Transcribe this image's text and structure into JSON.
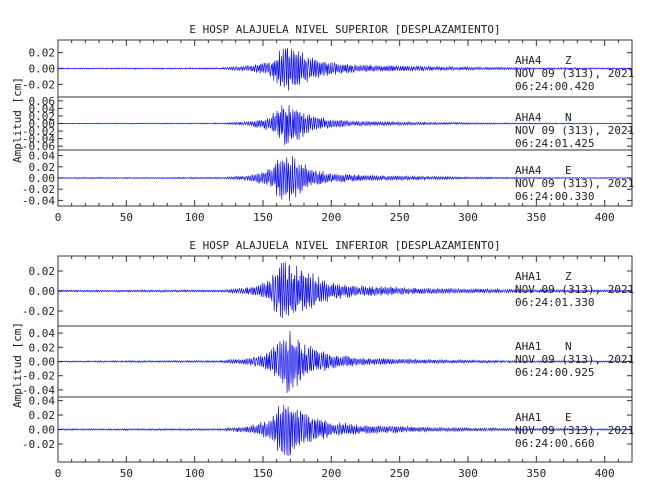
{
  "trace_color": "#1414e6",
  "chart_data": [
    {
      "type": "line",
      "title": "E HOSP ALAJUELA NIVEL SUPERIOR [DESPLAZAMIENTO]",
      "ylabel": "Amplitud [cm]",
      "xlabel": "",
      "xlim": [
        0,
        420
      ],
      "xticks": [
        "0",
        "50",
        "100",
        "150",
        "200",
        "250",
        "300",
        "350",
        "400"
      ],
      "traces": [
        {
          "station": "AHA4",
          "component": "Z",
          "date": "NOV 09 (313), 2021",
          "time": "06:24:00.420",
          "ylim": [
            -0.036,
            0.036
          ],
          "yticks": [
            {
              "v": 0.02,
              "t": "0.02"
            },
            {
              "v": 0.0,
              "t": "0.00"
            },
            {
              "v": -0.02,
              "t": "-0.02"
            }
          ],
          "envelope": [
            [
              0,
              0.0008
            ],
            [
              120,
              0.001
            ],
            [
              125,
              0.002
            ],
            [
              140,
              0.004
            ],
            [
              155,
              0.01
            ],
            [
              160,
              0.022
            ],
            [
              165,
              0.03
            ],
            [
              170,
              0.033
            ],
            [
              175,
              0.028
            ],
            [
              180,
              0.02
            ],
            [
              190,
              0.014
            ],
            [
              200,
              0.009
            ],
            [
              220,
              0.005
            ],
            [
              260,
              0.0035
            ],
            [
              300,
              0.002
            ],
            [
              350,
              0.0012
            ],
            [
              420,
              0.0008
            ]
          ]
        },
        {
          "station": "AHA4",
          "component": "N",
          "date": "NOV 09 (313), 2021",
          "time": "06:24:01.425",
          "ylim": [
            -0.07,
            0.07
          ],
          "yticks": [
            {
              "v": 0.06,
              "t": "0.06"
            },
            {
              "v": 0.04,
              "t": "0.04"
            },
            {
              "v": 0.02,
              "t": "0.02"
            },
            {
              "v": 0.0,
              "t": "0.00"
            },
            {
              "v": -0.02,
              "t": "-0.02"
            },
            {
              "v": -0.04,
              "t": "-0.04"
            },
            {
              "v": -0.06,
              "t": "-0.06"
            }
          ],
          "envelope": [
            [
              0,
              0.001
            ],
            [
              120,
              0.0015
            ],
            [
              140,
              0.006
            ],
            [
              155,
              0.02
            ],
            [
              160,
              0.04
            ],
            [
              165,
              0.06
            ],
            [
              170,
              0.063
            ],
            [
              175,
              0.05
            ],
            [
              180,
              0.035
            ],
            [
              190,
              0.02
            ],
            [
              200,
              0.012
            ],
            [
              220,
              0.007
            ],
            [
              260,
              0.004
            ],
            [
              300,
              0.0025
            ],
            [
              350,
              0.0015
            ],
            [
              420,
              0.001
            ]
          ]
        },
        {
          "station": "AHA4",
          "component": "E",
          "date": "NOV 09 (313), 2021",
          "time": "06:24:00.330",
          "ylim": [
            -0.05,
            0.05
          ],
          "yticks": [
            {
              "v": 0.04,
              "t": "0.04"
            },
            {
              "v": 0.02,
              "t": "0.02"
            },
            {
              "v": 0.0,
              "t": "0.00"
            },
            {
              "v": -0.02,
              "t": "-0.02"
            },
            {
              "v": -0.04,
              "t": "-0.04"
            }
          ],
          "envelope": [
            [
              0,
              0.001
            ],
            [
              120,
              0.0015
            ],
            [
              140,
              0.005
            ],
            [
              155,
              0.018
            ],
            [
              160,
              0.035
            ],
            [
              165,
              0.044
            ],
            [
              170,
              0.046
            ],
            [
              175,
              0.038
            ],
            [
              180,
              0.028
            ],
            [
              190,
              0.016
            ],
            [
              200,
              0.01
            ],
            [
              220,
              0.006
            ],
            [
              260,
              0.0035
            ],
            [
              300,
              0.002
            ],
            [
              350,
              0.0013
            ],
            [
              420,
              0.001
            ]
          ]
        }
      ]
    },
    {
      "type": "line",
      "title": "E HOSP ALAJUELA NIVEL INFERIOR [DESPLAZAMIENTO]",
      "ylabel": "Amplitud [cm]",
      "xlabel": "",
      "xlim": [
        0,
        420
      ],
      "xticks": [
        "0",
        "50",
        "100",
        "150",
        "200",
        "250",
        "300",
        "350",
        "400"
      ],
      "traces": [
        {
          "station": "AHA1",
          "component": "Z",
          "date": "NOV 09 (313), 2021",
          "time": "06:24:01.330",
          "ylim": [
            -0.035,
            0.035
          ],
          "yticks": [
            {
              "v": 0.02,
              "t": "0.02"
            },
            {
              "v": 0.0,
              "t": "0.00"
            },
            {
              "v": -0.02,
              "t": "-0.02"
            }
          ],
          "envelope": [
            [
              0,
              0.001
            ],
            [
              120,
              0.0012
            ],
            [
              140,
              0.004
            ],
            [
              155,
              0.012
            ],
            [
              160,
              0.025
            ],
            [
              165,
              0.032
            ],
            [
              170,
              0.033
            ],
            [
              175,
              0.028
            ],
            [
              180,
              0.022
            ],
            [
              190,
              0.016
            ],
            [
              200,
              0.01
            ],
            [
              220,
              0.006
            ],
            [
              260,
              0.0035
            ],
            [
              300,
              0.0025
            ],
            [
              350,
              0.0015
            ],
            [
              420,
              0.001
            ]
          ]
        },
        {
          "station": "AHA1",
          "component": "N",
          "date": "NOV 09 (313), 2021",
          "time": "06:24:00.925",
          "ylim": [
            -0.05,
            0.05
          ],
          "yticks": [
            {
              "v": 0.04,
              "t": "0.04"
            },
            {
              "v": 0.02,
              "t": "0.02"
            },
            {
              "v": 0.0,
              "t": "0.00"
            },
            {
              "v": -0.02,
              "t": "-0.02"
            },
            {
              "v": -0.04,
              "t": "-0.04"
            }
          ],
          "envelope": [
            [
              0,
              0.001
            ],
            [
              120,
              0.0015
            ],
            [
              140,
              0.005
            ],
            [
              155,
              0.015
            ],
            [
              160,
              0.03
            ],
            [
              165,
              0.045
            ],
            [
              170,
              0.047
            ],
            [
              175,
              0.038
            ],
            [
              180,
              0.028
            ],
            [
              190,
              0.018
            ],
            [
              200,
              0.011
            ],
            [
              220,
              0.006
            ],
            [
              260,
              0.0035
            ],
            [
              300,
              0.002
            ],
            [
              350,
              0.0013
            ],
            [
              420,
              0.001
            ]
          ]
        },
        {
          "station": "AHA1",
          "component": "E",
          "date": "NOV 09 (313), 2021",
          "time": "06:24:00.660",
          "ylim": [
            -0.045,
            0.045
          ],
          "yticks": [
            {
              "v": 0.04,
              "t": "0.04"
            },
            {
              "v": 0.02,
              "t": "0.02"
            },
            {
              "v": 0.0,
              "t": "0.00"
            },
            {
              "v": -0.02,
              "t": "-0.02"
            }
          ],
          "envelope": [
            [
              0,
              0.001
            ],
            [
              120,
              0.0015
            ],
            [
              140,
              0.005
            ],
            [
              155,
              0.015
            ],
            [
              160,
              0.03
            ],
            [
              165,
              0.04
            ],
            [
              170,
              0.042
            ],
            [
              175,
              0.035
            ],
            [
              180,
              0.027
            ],
            [
              190,
              0.018
            ],
            [
              200,
              0.012
            ],
            [
              220,
              0.007
            ],
            [
              260,
              0.004
            ],
            [
              300,
              0.0025
            ],
            [
              350,
              0.0015
            ],
            [
              420,
              0.001
            ]
          ]
        }
      ]
    }
  ]
}
